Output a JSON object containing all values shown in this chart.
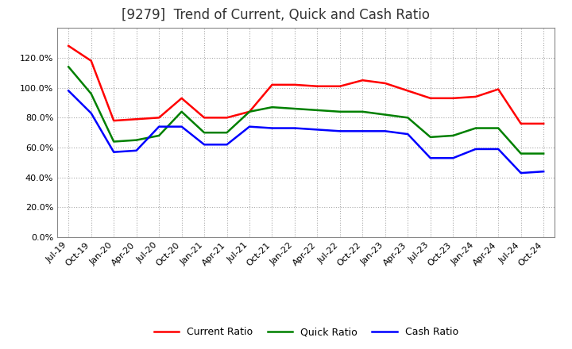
{
  "title": "[9279]  Trend of Current, Quick and Cash Ratio",
  "title_fontsize": 12,
  "ylim": [
    0.0,
    1.4
  ],
  "ytick_values": [
    0.0,
    0.2,
    0.4,
    0.6,
    0.8,
    1.0,
    1.2
  ],
  "x_labels": [
    "Jul-19",
    "Oct-19",
    "Jan-20",
    "Apr-20",
    "Jul-20",
    "Oct-20",
    "Jan-21",
    "Apr-21",
    "Jul-21",
    "Oct-21",
    "Jan-22",
    "Apr-22",
    "Jul-22",
    "Oct-22",
    "Jan-23",
    "Apr-23",
    "Jul-23",
    "Oct-23",
    "Jan-24",
    "Apr-24",
    "Jul-24",
    "Oct-24"
  ],
  "current_ratio": [
    1.28,
    1.18,
    0.78,
    0.79,
    0.8,
    0.93,
    0.8,
    0.8,
    0.84,
    1.02,
    1.02,
    1.01,
    1.01,
    1.05,
    1.03,
    0.98,
    0.93,
    0.93,
    0.94,
    0.99,
    0.76,
    0.76
  ],
  "quick_ratio": [
    1.14,
    0.96,
    0.64,
    0.65,
    0.68,
    0.84,
    0.7,
    0.7,
    0.84,
    0.87,
    0.86,
    0.85,
    0.84,
    0.84,
    0.82,
    0.8,
    0.67,
    0.68,
    0.73,
    0.73,
    0.56,
    0.56
  ],
  "cash_ratio": [
    0.98,
    0.83,
    0.57,
    0.58,
    0.74,
    0.74,
    0.62,
    0.62,
    0.74,
    0.73,
    0.73,
    0.72,
    0.71,
    0.71,
    0.71,
    0.69,
    0.53,
    0.53,
    0.59,
    0.59,
    0.43,
    0.44
  ],
  "current_color": "#FF0000",
  "quick_color": "#008000",
  "cash_color": "#0000FF",
  "line_width": 1.8,
  "background_color": "#ffffff",
  "plot_bg_color": "#ffffff",
  "grid_color": "#aaaaaa",
  "legend_labels": [
    "Current Ratio",
    "Quick Ratio",
    "Cash Ratio"
  ]
}
